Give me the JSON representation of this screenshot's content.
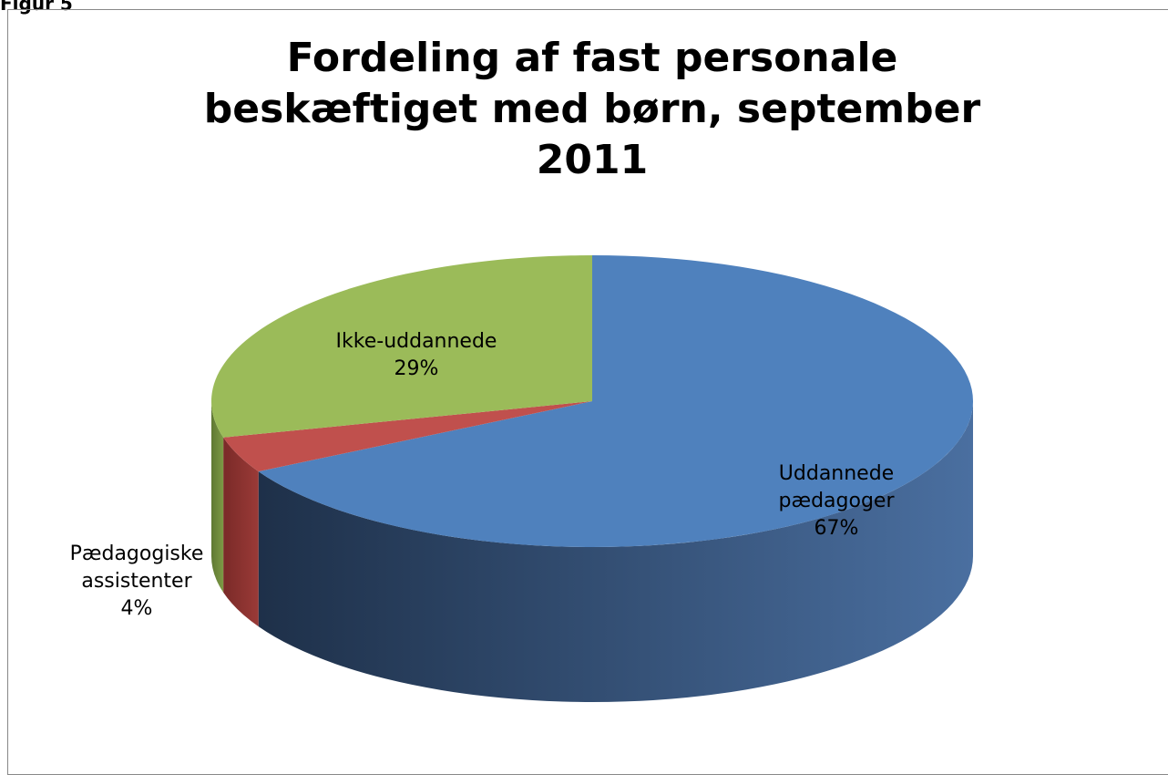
{
  "figure_label": "Figur 5",
  "chart_data": {
    "type": "pie",
    "title": "Fordeling af fast personale beskæftiget med børn, september 2011",
    "categories": [
      "Uddannede pædagoger",
      "Pædagogiske assistenter",
      "Ikke-uddannede"
    ],
    "values": [
      67,
      4,
      29
    ],
    "value_labels": [
      "67%",
      "4%",
      "29%"
    ],
    "colors": [
      "#4f81bd",
      "#c0504d",
      "#9bbb59"
    ],
    "side_colors": [
      [
        "#4a6fa0",
        "#1e3049"
      ],
      [
        "#9a3a37",
        "#7a2a28"
      ],
      [
        "#7d9a45",
        "#5f7833"
      ]
    ]
  }
}
